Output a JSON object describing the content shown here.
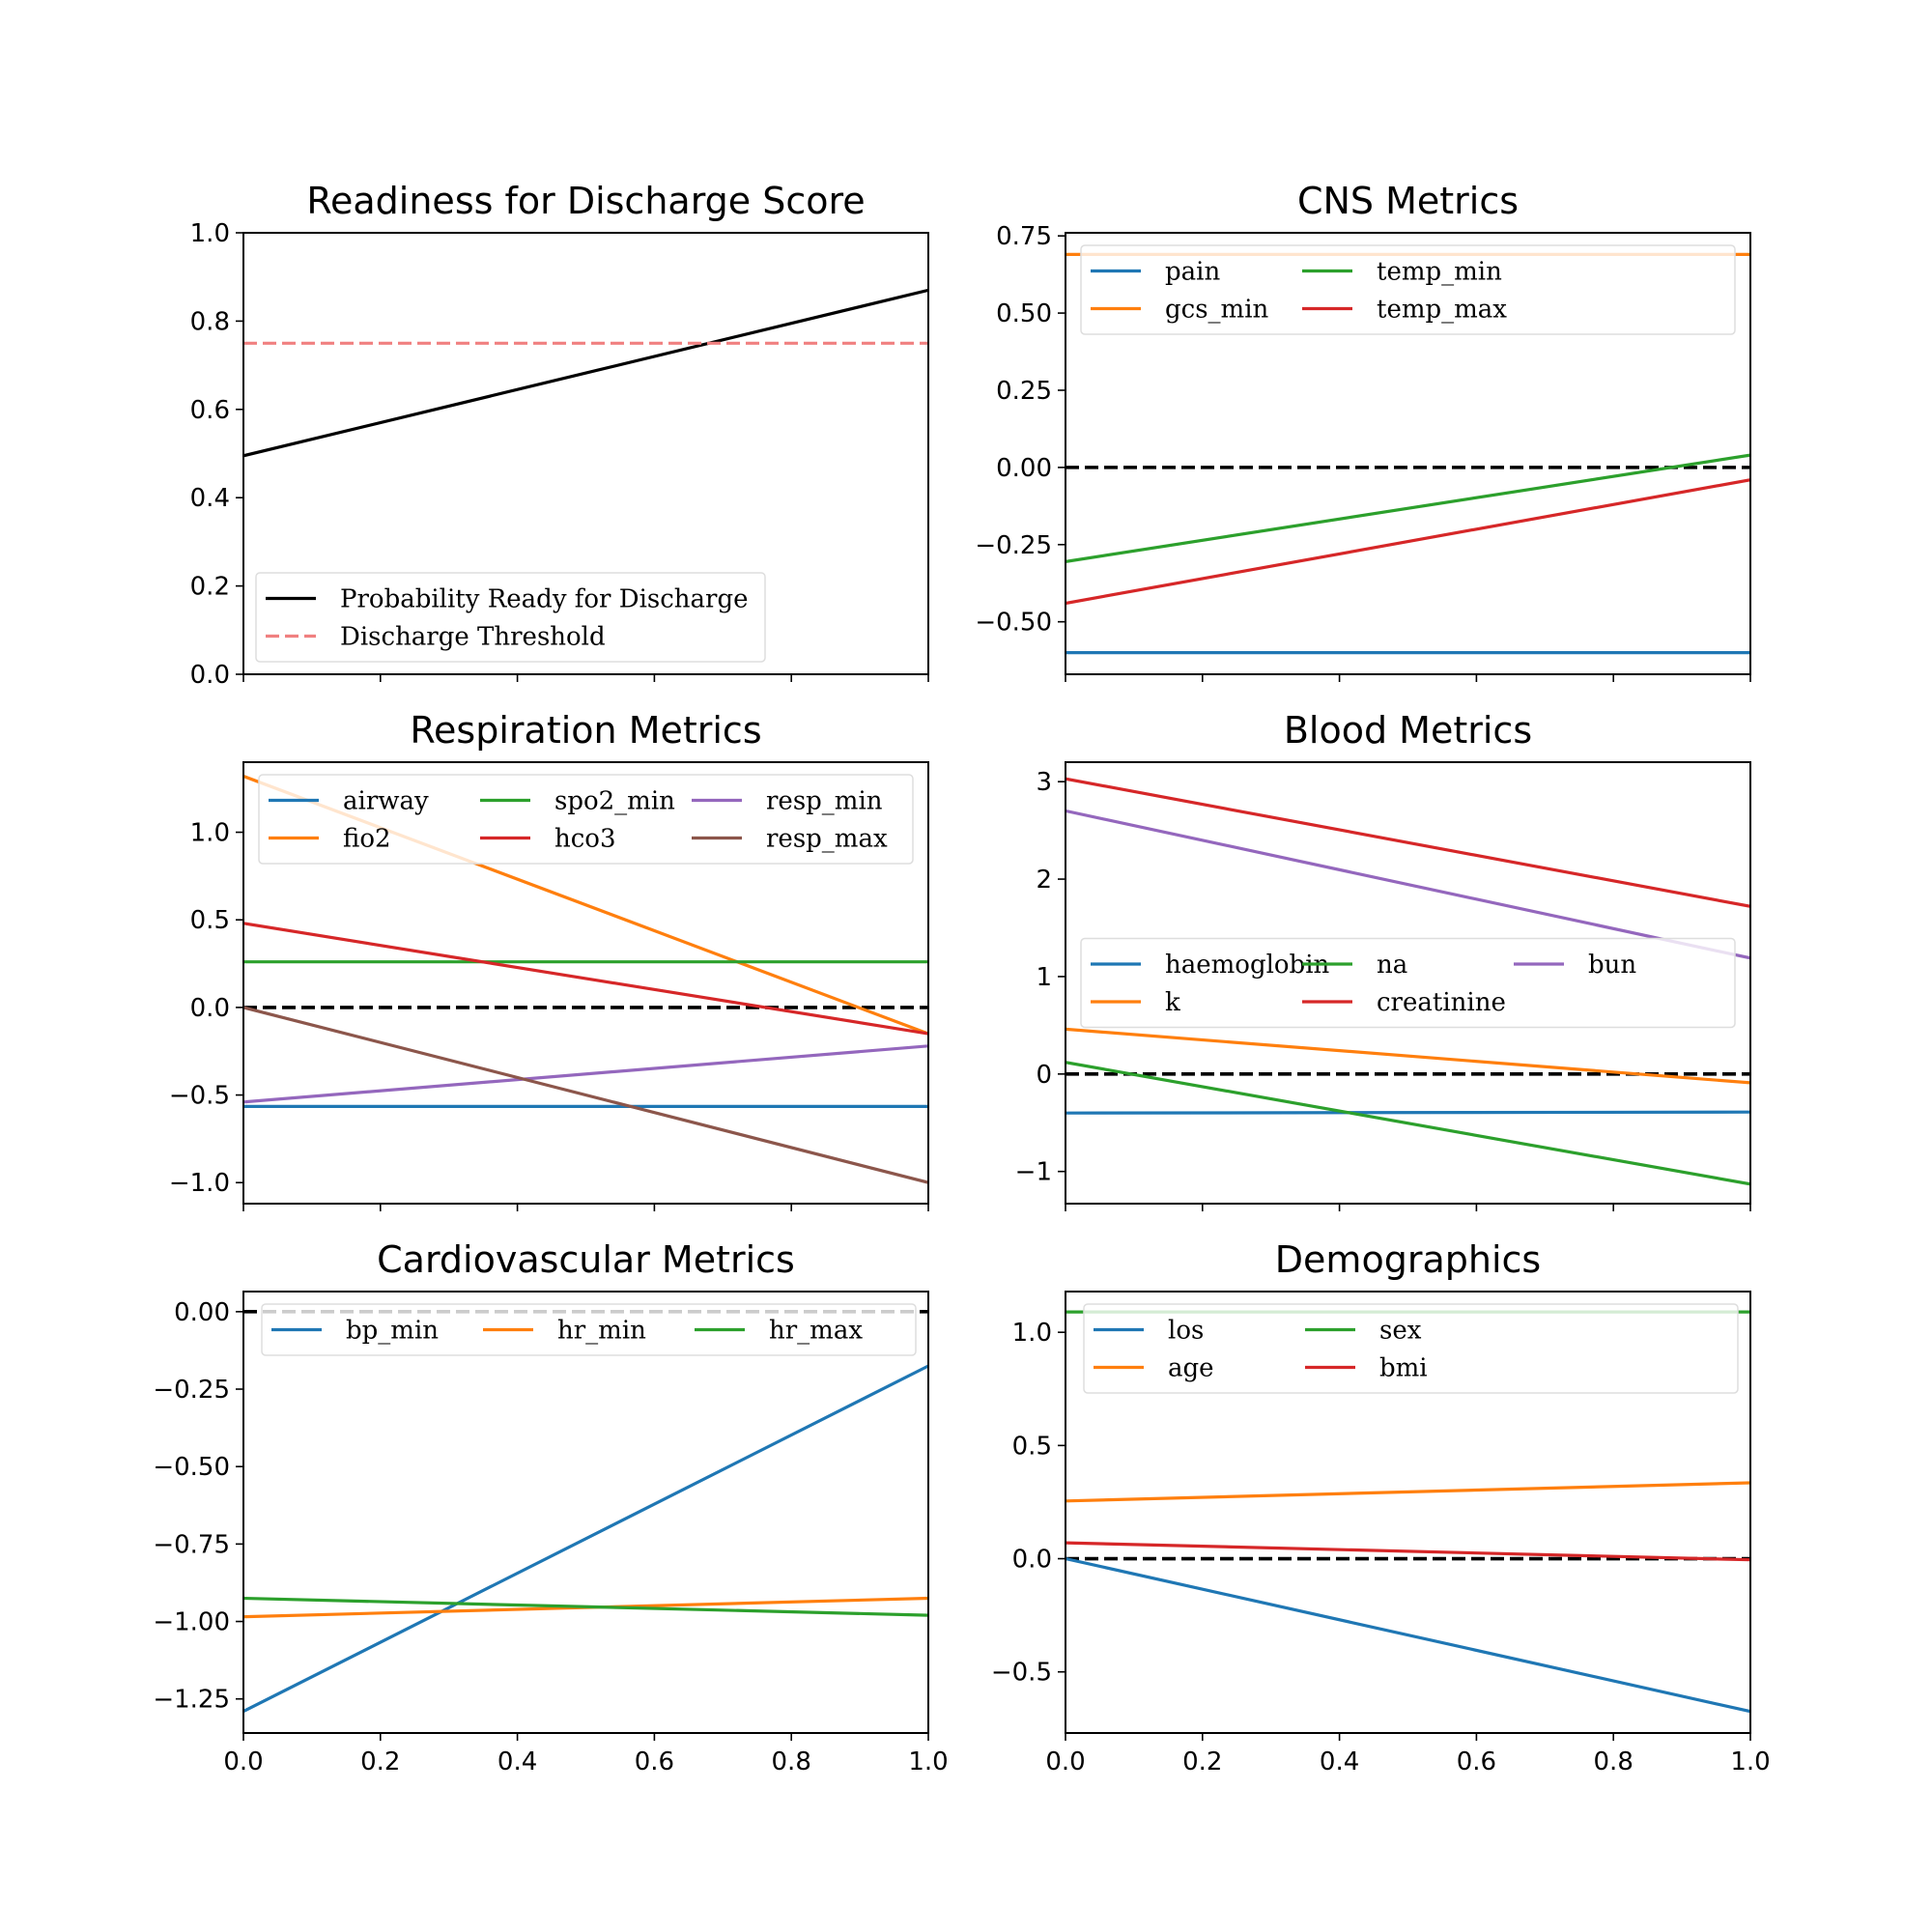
{
  "chart_data": [
    {
      "type": "line",
      "title": "Readiness for Discharge Score",
      "xlim": [
        0,
        1
      ],
      "ylim": [
        0,
        1
      ],
      "yticks": [
        0,
        0.2,
        0.4,
        0.6,
        0.8,
        1
      ],
      "ytick_labels": [
        "0.0",
        "0.2",
        "0.4",
        "0.6",
        "0.8",
        "1.0"
      ],
      "legend_loc": "lower-left",
      "legend_ncol": 1,
      "reference_lines": [],
      "series": [
        {
          "name": "Probability Ready for Discharge",
          "color": "#000000",
          "dash": "solid",
          "width": 3.2,
          "x": [
            0,
            1
          ],
          "y": [
            0.495,
            0.87
          ]
        },
        {
          "name": "Discharge Threshold",
          "color": "#f08080",
          "dash": "dashed",
          "width": 3.2,
          "x": [
            0,
            1
          ],
          "y": [
            0.75,
            0.75
          ]
        }
      ]
    },
    {
      "type": "line",
      "title": "CNS Metrics",
      "xlim": [
        0,
        1
      ],
      "ylim": [
        -0.67,
        0.76
      ],
      "yticks": [
        -0.5,
        -0.25,
        0,
        0.25,
        0.5,
        0.75
      ],
      "ytick_labels": [
        "−0.50",
        "−0.25",
        "0.00",
        "0.25",
        "0.50",
        "0.75"
      ],
      "legend_loc": "upper-center",
      "legend_ncol": 3,
      "reference_lines": [
        {
          "y": 0,
          "color": "#000000",
          "dash": "dashed"
        }
      ],
      "series": [
        {
          "name": "pain",
          "color": "#1f77b4",
          "dash": "solid",
          "width": 3.2,
          "x": [
            0,
            1
          ],
          "y": [
            -0.6,
            -0.6
          ]
        },
        {
          "name": "gcs_min",
          "color": "#ff7f0e",
          "dash": "solid",
          "width": 3.2,
          "x": [
            0,
            1
          ],
          "y": [
            0.69,
            0.69
          ]
        },
        {
          "name": "temp_min",
          "color": "#2ca02c",
          "dash": "solid",
          "width": 3.2,
          "x": [
            0,
            1
          ],
          "y": [
            -0.305,
            0.04
          ]
        },
        {
          "name": "temp_max",
          "color": "#d62728",
          "dash": "solid",
          "width": 3.2,
          "x": [
            0,
            1
          ],
          "y": [
            -0.44,
            -0.04
          ]
        }
      ]
    },
    {
      "type": "line",
      "title": "Respiration Metrics",
      "xlim": [
        0,
        1
      ],
      "ylim": [
        -1.12,
        1.4
      ],
      "yticks": [
        -1,
        -0.5,
        0,
        0.5,
        1
      ],
      "ytick_labels": [
        "−1.0",
        "−0.5",
        "0.0",
        "0.5",
        "1.0"
      ],
      "legend_loc": "upper-center",
      "legend_ncol": 3,
      "reference_lines": [
        {
          "y": 0,
          "color": "#000000",
          "dash": "dashed"
        }
      ],
      "series": [
        {
          "name": "airway",
          "color": "#1f77b4",
          "dash": "solid",
          "width": 3.2,
          "x": [
            0,
            1
          ],
          "y": [
            -0.565,
            -0.565
          ]
        },
        {
          "name": "fio2",
          "color": "#ff7f0e",
          "dash": "solid",
          "width": 3.2,
          "x": [
            0,
            1
          ],
          "y": [
            1.32,
            -0.15
          ]
        },
        {
          "name": "spo2_min",
          "color": "#2ca02c",
          "dash": "solid",
          "width": 3.2,
          "x": [
            0,
            1
          ],
          "y": [
            0.26,
            0.26
          ]
        },
        {
          "name": "hco3",
          "color": "#d62728",
          "dash": "solid",
          "width": 3.2,
          "x": [
            0,
            1
          ],
          "y": [
            0.48,
            -0.15
          ]
        },
        {
          "name": "resp_min",
          "color": "#9467bd",
          "dash": "solid",
          "width": 3.2,
          "x": [
            0,
            1
          ],
          "y": [
            -0.54,
            -0.22
          ]
        },
        {
          "name": "resp_max",
          "color": "#8c564b",
          "dash": "solid",
          "width": 3.2,
          "x": [
            0,
            1
          ],
          "y": [
            0,
            -1.0
          ]
        }
      ]
    },
    {
      "type": "line",
      "title": "Blood Metrics",
      "xlim": [
        0,
        1
      ],
      "ylim": [
        -1.33,
        3.2
      ],
      "yticks": [
        -1,
        0,
        1,
        2,
        3
      ],
      "ytick_labels": [
        "−1",
        "0",
        "1",
        "2",
        "3"
      ],
      "legend_loc": "center",
      "legend_ncol": 3,
      "reference_lines": [
        {
          "y": 0,
          "color": "#000000",
          "dash": "dashed"
        }
      ],
      "series": [
        {
          "name": "haemoglobin",
          "color": "#1f77b4",
          "dash": "solid",
          "width": 3.2,
          "x": [
            0,
            1
          ],
          "y": [
            -0.4,
            -0.39
          ]
        },
        {
          "name": "k",
          "color": "#ff7f0e",
          "dash": "solid",
          "width": 3.2,
          "x": [
            0,
            1
          ],
          "y": [
            0.46,
            -0.09
          ]
        },
        {
          "name": "na",
          "color": "#2ca02c",
          "dash": "solid",
          "width": 3.2,
          "x": [
            0,
            1
          ],
          "y": [
            0.12,
            -1.13
          ]
        },
        {
          "name": "creatinine",
          "color": "#d62728",
          "dash": "solid",
          "width": 3.2,
          "x": [
            0,
            1
          ],
          "y": [
            3.03,
            1.72
          ]
        },
        {
          "name": "bun",
          "color": "#9467bd",
          "dash": "solid",
          "width": 3.2,
          "x": [
            0,
            1
          ],
          "y": [
            2.7,
            1.19
          ]
        }
      ]
    },
    {
      "type": "line",
      "title": "Cardiovascular Metrics",
      "xlim": [
        0,
        1
      ],
      "ylim": [
        -1.36,
        0.065
      ],
      "yticks": [
        -1.25,
        -1,
        -0.75,
        -0.5,
        -0.25,
        0
      ],
      "ytick_labels": [
        "−1.25",
        "−1.00",
        "−0.75",
        "−0.50",
        "−0.25",
        "0.00"
      ],
      "xticks": [
        0,
        0.2,
        0.4,
        0.6,
        0.8,
        1
      ],
      "xtick_labels": [
        "0.0",
        "0.2",
        "0.4",
        "0.6",
        "0.8",
        "1.0"
      ],
      "legend_loc": "upper-right",
      "legend_ncol": 3,
      "reference_lines": [
        {
          "y": 0,
          "color": "#000000",
          "dash": "dashed"
        }
      ],
      "series": [
        {
          "name": "bp_min",
          "color": "#1f77b4",
          "dash": "solid",
          "width": 3.2,
          "x": [
            0,
            1
          ],
          "y": [
            -1.29,
            -0.175
          ]
        },
        {
          "name": "hr_min",
          "color": "#ff7f0e",
          "dash": "solid",
          "width": 3.2,
          "x": [
            0,
            1
          ],
          "y": [
            -0.985,
            -0.925
          ]
        },
        {
          "name": "hr_max",
          "color": "#2ca02c",
          "dash": "solid",
          "width": 3.2,
          "x": [
            0,
            1
          ],
          "y": [
            -0.925,
            -0.98
          ]
        }
      ]
    },
    {
      "type": "line",
      "title": "Demographics",
      "xlim": [
        0,
        1
      ],
      "ylim": [
        -0.77,
        1.18
      ],
      "yticks": [
        -0.5,
        0,
        0.5,
        1
      ],
      "ytick_labels": [
        "−0.5",
        "0.0",
        "0.5",
        "1.0"
      ],
      "xticks": [
        0,
        0.2,
        0.4,
        0.6,
        0.8,
        1
      ],
      "xtick_labels": [
        "0.0",
        "0.2",
        "0.4",
        "0.6",
        "0.8",
        "1.0"
      ],
      "legend_loc": "upper-right",
      "legend_ncol": 3,
      "reference_lines": [
        {
          "y": 0,
          "color": "#000000",
          "dash": "dashed"
        }
      ],
      "series": [
        {
          "name": "los",
          "color": "#1f77b4",
          "dash": "solid",
          "width": 3.2,
          "x": [
            0,
            1
          ],
          "y": [
            0,
            -0.675
          ]
        },
        {
          "name": "age",
          "color": "#ff7f0e",
          "dash": "solid",
          "width": 3.2,
          "x": [
            0,
            1
          ],
          "y": [
            0.255,
            0.335
          ]
        },
        {
          "name": "sex",
          "color": "#2ca02c",
          "dash": "solid",
          "width": 3.2,
          "x": [
            0,
            1
          ],
          "y": [
            1.09,
            1.09
          ]
        },
        {
          "name": "bmi",
          "color": "#d62728",
          "dash": "solid",
          "width": 3.2,
          "x": [
            0,
            1
          ],
          "y": [
            0.07,
            -0.005
          ]
        }
      ]
    }
  ]
}
